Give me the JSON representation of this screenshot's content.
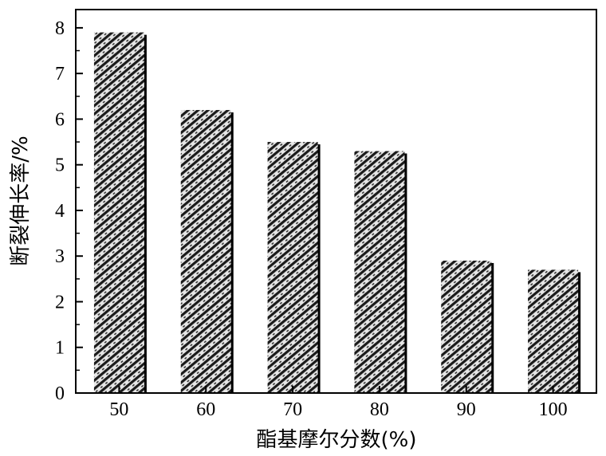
{
  "chart_data": {
    "type": "bar",
    "categories": [
      "50",
      "60",
      "70",
      "80",
      "90",
      "100"
    ],
    "values": [
      7.9,
      6.2,
      5.5,
      5.3,
      2.9,
      2.7
    ],
    "xlabel": "酯基摩尔分数(%)",
    "ylabel": "断裂伸长率/%",
    "ylim": [
      0,
      8.4
    ],
    "yticks": [
      "0",
      "1",
      "2",
      "3",
      "4",
      "5",
      "6",
      "7",
      "8"
    ],
    "grid": false,
    "legend": "none",
    "colors": {
      "bar_pattern_dark": "#1a1a1a",
      "bar_pattern_light": "#e6e6e6",
      "bar_shadow": "#000000",
      "axis": "#000000"
    }
  }
}
